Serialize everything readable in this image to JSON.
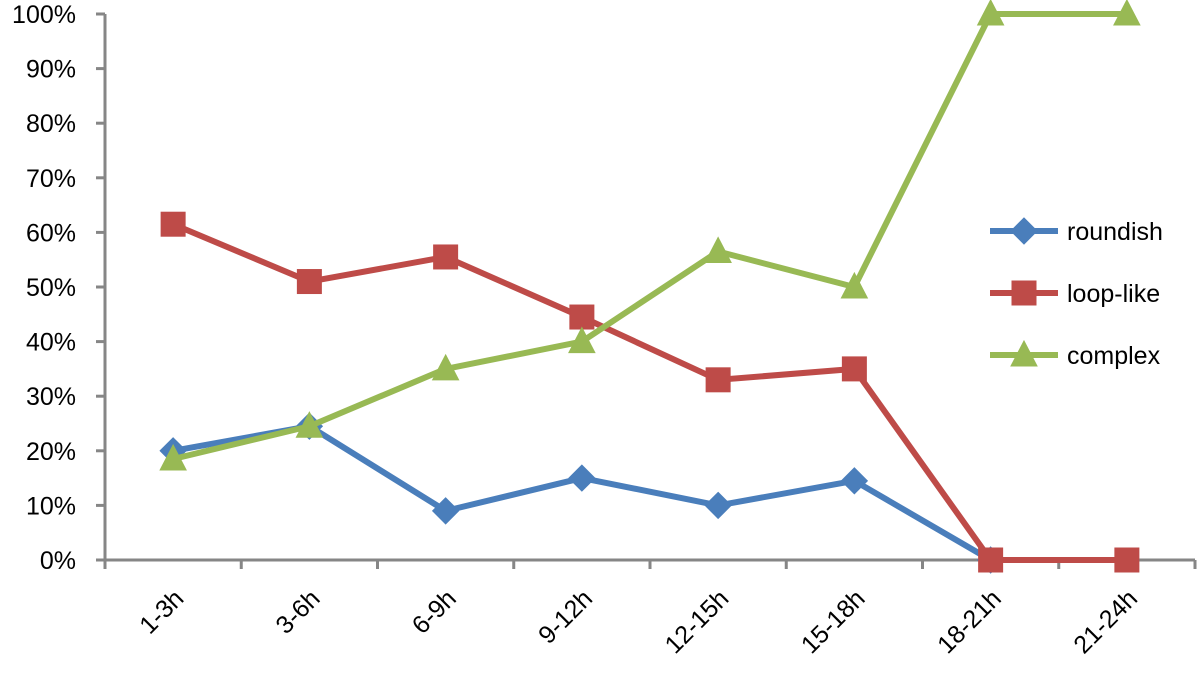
{
  "chart_data": {
    "type": "line",
    "title": "",
    "xlabel": "",
    "ylabel": "",
    "categories": [
      "1-3h",
      "3-6h",
      "6-9h",
      "9-12h",
      "12-15h",
      "15-18h",
      "18-21h",
      "21-24h"
    ],
    "ylim": [
      0,
      100
    ],
    "yticks": [
      "0%",
      "10%",
      "20%",
      "30%",
      "40%",
      "50%",
      "60%",
      "70%",
      "80%",
      "90%",
      "100%"
    ],
    "grid": false,
    "legend_position": "right",
    "series": [
      {
        "name": "roundish",
        "color": "#4A7EBB",
        "marker": "diamond",
        "values": [
          20,
          24.5,
          9,
          15,
          10,
          14.5,
          0,
          null
        ]
      },
      {
        "name": "loop-like",
        "color": "#BE4B48",
        "marker": "square",
        "values": [
          61.5,
          51,
          55.5,
          44.5,
          33,
          35,
          0,
          0
        ]
      },
      {
        "name": "complex",
        "color": "#98B954",
        "marker": "triangle",
        "values": [
          18.5,
          24.5,
          35,
          40,
          56.5,
          50,
          100,
          100
        ]
      }
    ]
  }
}
